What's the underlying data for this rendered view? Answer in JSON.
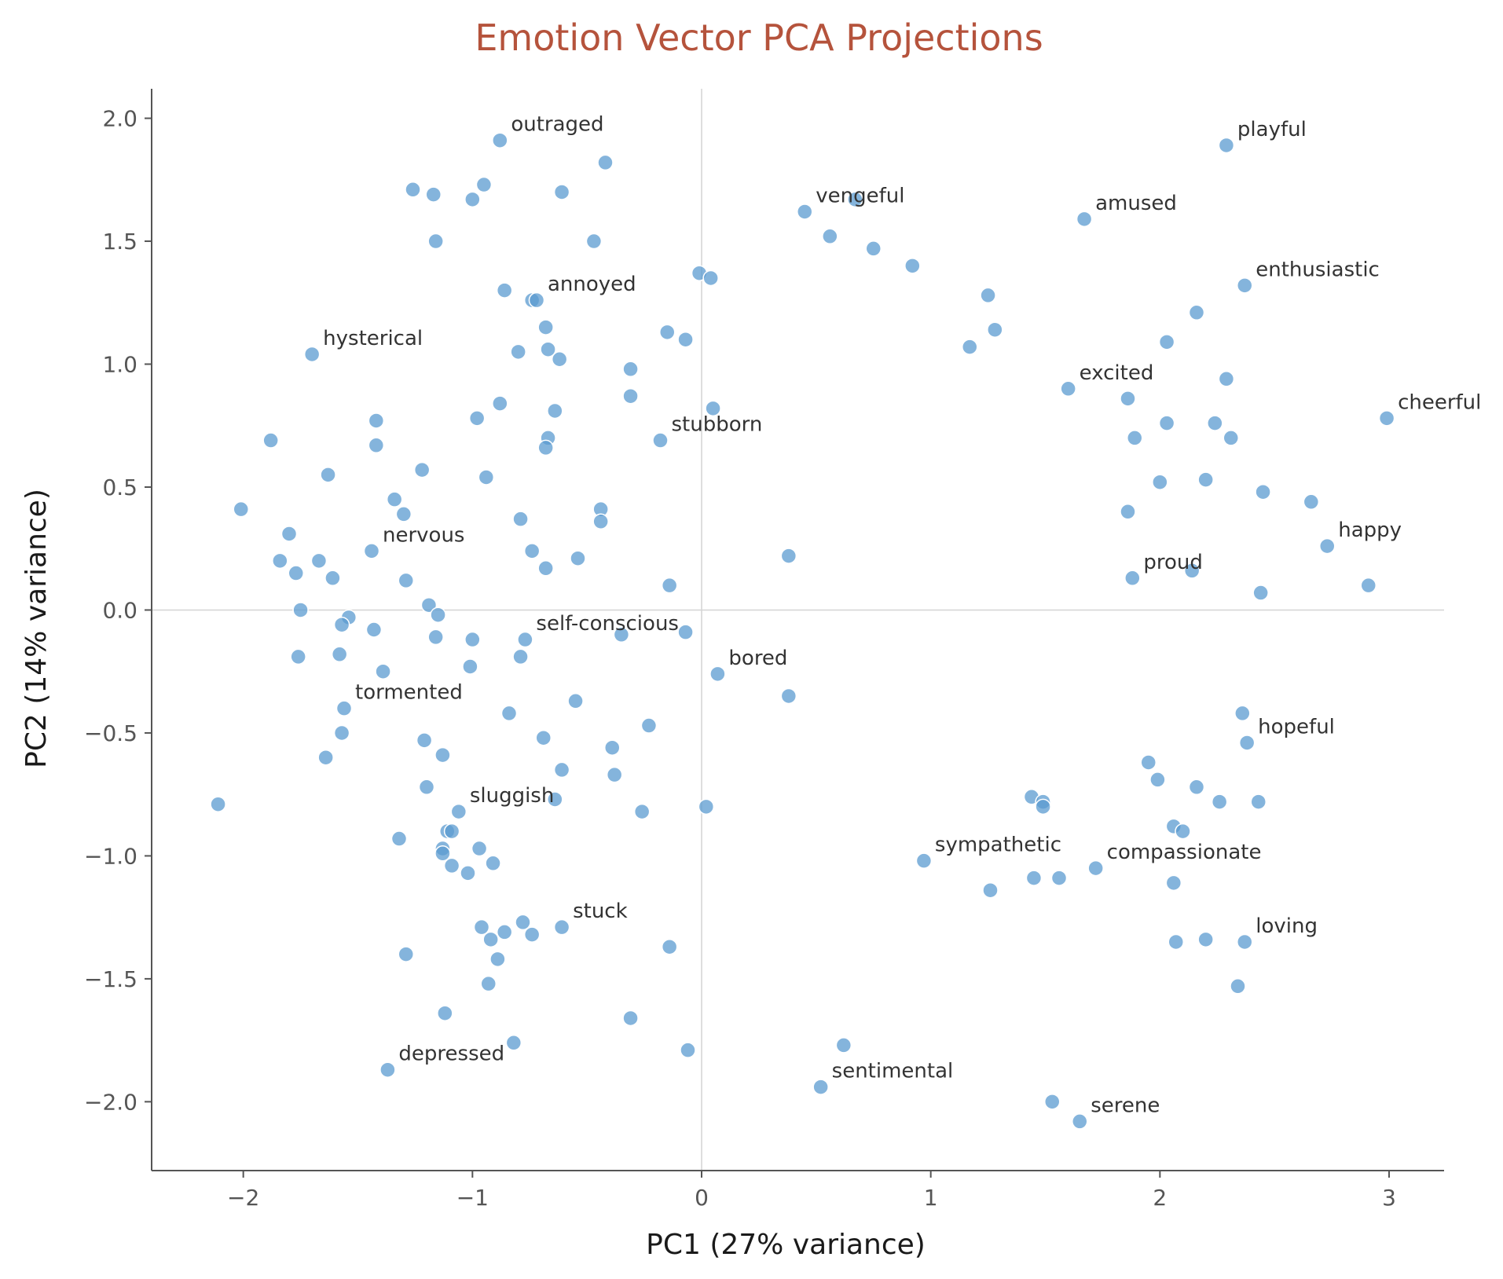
{
  "chart_data": {
    "type": "scatter",
    "title": "Emotion Vector PCA Projections",
    "xlabel": "PC1 (27% variance)",
    "ylabel": "PC2 (14% variance)",
    "xlim": [
      -2.4,
      3.24
    ],
    "ylim": [
      -2.28,
      2.12
    ],
    "xticks": [
      -2,
      -1,
      0,
      1,
      2,
      3
    ],
    "xtick_labels": [
      "−2",
      "−1",
      "0",
      "1",
      "2",
      "3"
    ],
    "yticks": [
      -2.0,
      -1.5,
      -1.0,
      -0.5,
      0.0,
      0.5,
      1.0,
      1.5,
      2.0
    ],
    "ytick_labels": [
      "−2.0",
      "−1.5",
      "−1.0",
      "−0.5",
      "0.0",
      "0.5",
      "1.0",
      "1.5",
      "2.0"
    ],
    "zero_lines": true,
    "grid": false,
    "point_color": "#5b9bd0",
    "title_color": "#b5533c",
    "labeled_points": [
      {
        "label": "outraged",
        "x": -0.88,
        "y": 1.91
      },
      {
        "label": "playful",
        "x": 2.29,
        "y": 1.89
      },
      {
        "label": "vengeful",
        "x": 0.45,
        "y": 1.62
      },
      {
        "label": "amused",
        "x": 1.67,
        "y": 1.59
      },
      {
        "label": "enthusiastic",
        "x": 2.37,
        "y": 1.32
      },
      {
        "label": "annoyed",
        "x": -0.72,
        "y": 1.26
      },
      {
        "label": "hysterical",
        "x": -1.7,
        "y": 1.04
      },
      {
        "label": "excited",
        "x": 1.6,
        "y": 0.9
      },
      {
        "label": "cheerful",
        "x": 2.99,
        "y": 0.78
      },
      {
        "label": "stubborn",
        "x": -0.18,
        "y": 0.69
      },
      {
        "label": "happy",
        "x": 2.73,
        "y": 0.26
      },
      {
        "label": "nervous",
        "x": -1.44,
        "y": 0.24
      },
      {
        "label": "proud",
        "x": 1.88,
        "y": 0.13
      },
      {
        "label": "self-conscious",
        "x": -0.77,
        "y": -0.12
      },
      {
        "label": "bored",
        "x": 0.07,
        "y": -0.26
      },
      {
        "label": "tormented",
        "x": -1.56,
        "y": -0.4
      },
      {
        "label": "hopeful",
        "x": 2.38,
        "y": -0.54
      },
      {
        "label": "sluggish",
        "x": -1.06,
        "y": -0.82
      },
      {
        "label": "sympathetic",
        "x": 0.97,
        "y": -1.02
      },
      {
        "label": "compassionate",
        "x": 1.72,
        "y": -1.05
      },
      {
        "label": "stuck",
        "x": -0.61,
        "y": -1.29
      },
      {
        "label": "loving",
        "x": 2.37,
        "y": -1.35
      },
      {
        "label": "depressed",
        "x": -1.37,
        "y": -1.87
      },
      {
        "label": "sentimental",
        "x": 0.52,
        "y": -1.94
      },
      {
        "label": "serene",
        "x": 1.65,
        "y": -2.08
      }
    ],
    "unlabeled_points": [
      [
        -0.42,
        1.82
      ],
      [
        -1.26,
        1.71
      ],
      [
        -1.17,
        1.69
      ],
      [
        -0.95,
        1.73
      ],
      [
        -1.0,
        1.67
      ],
      [
        -0.61,
        1.7
      ],
      [
        -1.16,
        1.5
      ],
      [
        -0.47,
        1.5
      ],
      [
        0.67,
        1.67
      ],
      [
        0.56,
        1.52
      ],
      [
        0.75,
        1.47
      ],
      [
        0.92,
        1.4
      ],
      [
        -0.86,
        1.3
      ],
      [
        -0.74,
        1.26
      ],
      [
        -0.01,
        1.37
      ],
      [
        0.04,
        1.35
      ],
      [
        1.25,
        1.28
      ],
      [
        -0.68,
        1.15
      ],
      [
        -0.15,
        1.13
      ],
      [
        -0.07,
        1.1
      ],
      [
        1.28,
        1.14
      ],
      [
        1.17,
        1.07
      ],
      [
        2.16,
        1.21
      ],
      [
        2.03,
        1.09
      ],
      [
        -0.8,
        1.05
      ],
      [
        -0.67,
        1.06
      ],
      [
        -0.62,
        1.02
      ],
      [
        -0.31,
        0.98
      ],
      [
        2.29,
        0.94
      ],
      [
        -0.88,
        0.84
      ],
      [
        -0.64,
        0.81
      ],
      [
        -0.31,
        0.87
      ],
      [
        0.05,
        0.82
      ],
      [
        1.86,
        0.86
      ],
      [
        -1.42,
        0.77
      ],
      [
        -0.98,
        0.78
      ],
      [
        2.03,
        0.76
      ],
      [
        2.24,
        0.76
      ],
      [
        -1.88,
        0.69
      ],
      [
        -1.42,
        0.67
      ],
      [
        -0.67,
        0.7
      ],
      [
        -0.68,
        0.66
      ],
      [
        1.89,
        0.7
      ],
      [
        2.31,
        0.7
      ],
      [
        -1.63,
        0.55
      ],
      [
        -1.22,
        0.57
      ],
      [
        -0.94,
        0.54
      ],
      [
        2.0,
        0.52
      ],
      [
        2.2,
        0.53
      ],
      [
        -2.01,
        0.41
      ],
      [
        -1.34,
        0.45
      ],
      [
        -1.3,
        0.39
      ],
      [
        -0.44,
        0.41
      ],
      [
        -0.44,
        0.36
      ],
      [
        -0.79,
        0.37
      ],
      [
        1.86,
        0.4
      ],
      [
        2.45,
        0.48
      ],
      [
        2.66,
        0.44
      ],
      [
        -1.8,
        0.31
      ],
      [
        -1.84,
        0.2
      ],
      [
        -1.67,
        0.2
      ],
      [
        -1.77,
        0.15
      ],
      [
        -1.61,
        0.13
      ],
      [
        -1.29,
        0.12
      ],
      [
        -0.74,
        0.24
      ],
      [
        -0.68,
        0.17
      ],
      [
        -0.54,
        0.21
      ],
      [
        0.38,
        0.22
      ],
      [
        -0.14,
        0.1
      ],
      [
        2.14,
        0.16
      ],
      [
        2.44,
        0.07
      ],
      [
        2.91,
        0.1
      ],
      [
        -1.75,
        0.0
      ],
      [
        -1.19,
        0.02
      ],
      [
        -1.15,
        -0.02
      ],
      [
        -1.54,
        -0.03
      ],
      [
        -1.57,
        -0.06
      ],
      [
        -1.43,
        -0.08
      ],
      [
        -1.16,
        -0.11
      ],
      [
        -1.0,
        -0.12
      ],
      [
        -0.35,
        -0.1
      ],
      [
        -0.07,
        -0.09
      ],
      [
        -1.76,
        -0.19
      ],
      [
        -1.58,
        -0.18
      ],
      [
        -1.39,
        -0.25
      ],
      [
        -1.01,
        -0.23
      ],
      [
        -0.79,
        -0.19
      ],
      [
        0.38,
        -0.35
      ],
      [
        -0.55,
        -0.37
      ],
      [
        -0.84,
        -0.42
      ],
      [
        -1.57,
        -0.5
      ],
      [
        -1.21,
        -0.53
      ],
      [
        -1.13,
        -0.59
      ],
      [
        -0.69,
        -0.52
      ],
      [
        -0.39,
        -0.56
      ],
      [
        -0.23,
        -0.47
      ],
      [
        2.36,
        -0.42
      ],
      [
        -1.64,
        -0.6
      ],
      [
        -1.2,
        -0.72
      ],
      [
        -0.61,
        -0.65
      ],
      [
        -0.38,
        -0.67
      ],
      [
        1.95,
        -0.62
      ],
      [
        1.99,
        -0.69
      ],
      [
        2.16,
        -0.72
      ],
      [
        2.26,
        -0.78
      ],
      [
        2.43,
        -0.78
      ],
      [
        -2.11,
        -0.79
      ],
      [
        -0.64,
        -0.77
      ],
      [
        -0.26,
        -0.82
      ],
      [
        0.02,
        -0.8
      ],
      [
        1.44,
        -0.76
      ],
      [
        1.49,
        -0.78
      ],
      [
        1.49,
        -0.8
      ],
      [
        -1.11,
        -0.9
      ],
      [
        -1.09,
        -0.9
      ],
      [
        2.06,
        -0.88
      ],
      [
        2.1,
        -0.9
      ],
      [
        -1.32,
        -0.93
      ],
      [
        -1.13,
        -0.97
      ],
      [
        -1.13,
        -0.99
      ],
      [
        -0.97,
        -0.97
      ],
      [
        -0.91,
        -1.03
      ],
      [
        -1.09,
        -1.04
      ],
      [
        -1.02,
        -1.07
      ],
      [
        1.45,
        -1.09
      ],
      [
        1.56,
        -1.09
      ],
      [
        2.06,
        -1.11
      ],
      [
        1.26,
        -1.14
      ],
      [
        -0.96,
        -1.29
      ],
      [
        -0.92,
        -1.34
      ],
      [
        -0.86,
        -1.31
      ],
      [
        -0.78,
        -1.27
      ],
      [
        -0.74,
        -1.32
      ],
      [
        -0.89,
        -1.42
      ],
      [
        -0.14,
        -1.37
      ],
      [
        2.07,
        -1.35
      ],
      [
        2.2,
        -1.34
      ],
      [
        -1.29,
        -1.4
      ],
      [
        -0.93,
        -1.52
      ],
      [
        2.34,
        -1.53
      ],
      [
        -1.12,
        -1.64
      ],
      [
        -0.31,
        -1.66
      ],
      [
        -0.82,
        -1.76
      ],
      [
        -0.06,
        -1.79
      ],
      [
        0.62,
        -1.77
      ],
      [
        1.53,
        -2.0
      ]
    ]
  }
}
